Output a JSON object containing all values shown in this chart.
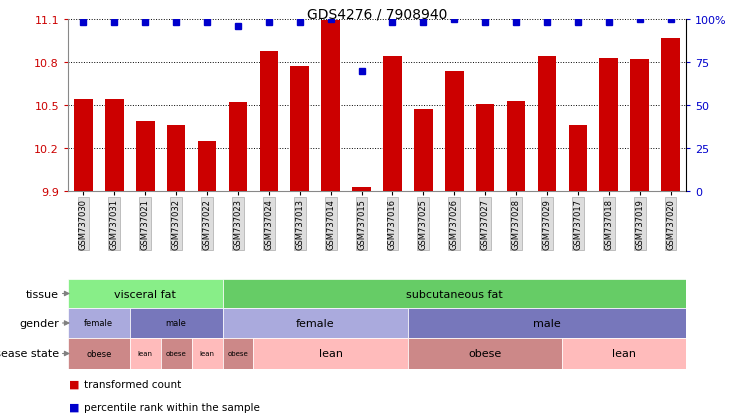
{
  "title": "GDS4276 / 7908940",
  "samples": [
    "GSM737030",
    "GSM737031",
    "GSM737021",
    "GSM737032",
    "GSM737022",
    "GSM737023",
    "GSM737024",
    "GSM737013",
    "GSM737014",
    "GSM737015",
    "GSM737016",
    "GSM737025",
    "GSM737026",
    "GSM737027",
    "GSM737028",
    "GSM737029",
    "GSM737017",
    "GSM737018",
    "GSM737019",
    "GSM737020"
  ],
  "bar_values": [
    10.54,
    10.54,
    10.39,
    10.36,
    10.25,
    10.52,
    10.88,
    10.77,
    11.09,
    9.93,
    10.84,
    10.47,
    10.74,
    10.51,
    10.53,
    10.84,
    10.36,
    10.83,
    10.82,
    10.97
  ],
  "percentile_values": [
    98,
    98,
    98,
    98,
    98,
    96,
    98,
    98,
    100,
    70,
    98,
    98,
    100,
    98,
    98,
    98,
    98,
    98,
    100,
    100
  ],
  "ylim_left": [
    9.9,
    11.1
  ],
  "yticks_left": [
    9.9,
    10.2,
    10.5,
    10.8,
    11.1
  ],
  "ylim_right": [
    0,
    100
  ],
  "yticks_right": [
    0,
    25,
    50,
    75,
    100
  ],
  "bar_color": "#cc0000",
  "dot_color": "#0000cc",
  "tissue_groups": [
    {
      "label": "visceral fat",
      "start": 0,
      "end": 5,
      "color": "#88ee88"
    },
    {
      "label": "subcutaneous fat",
      "start": 5,
      "end": 20,
      "color": "#66cc66"
    }
  ],
  "gender_groups": [
    {
      "label": "female",
      "start": 0,
      "end": 2,
      "color": "#aaaadd"
    },
    {
      "label": "male",
      "start": 2,
      "end": 5,
      "color": "#7777bb"
    },
    {
      "label": "female",
      "start": 5,
      "end": 11,
      "color": "#aaaadd"
    },
    {
      "label": "male",
      "start": 11,
      "end": 20,
      "color": "#7777bb"
    }
  ],
  "disease_groups": [
    {
      "label": "obese",
      "start": 0,
      "end": 2,
      "color": "#cc8888"
    },
    {
      "label": "lean",
      "start": 2,
      "end": 3,
      "color": "#ffbbbb"
    },
    {
      "label": "obese",
      "start": 3,
      "end": 4,
      "color": "#cc8888"
    },
    {
      "label": "lean",
      "start": 4,
      "end": 5,
      "color": "#ffbbbb"
    },
    {
      "label": "obese",
      "start": 5,
      "end": 6,
      "color": "#cc8888"
    },
    {
      "label": "lean",
      "start": 6,
      "end": 11,
      "color": "#ffbbbb"
    },
    {
      "label": "obese",
      "start": 11,
      "end": 16,
      "color": "#cc8888"
    },
    {
      "label": "lean",
      "start": 16,
      "end": 20,
      "color": "#ffbbbb"
    }
  ],
  "legend_items": [
    {
      "label": "transformed count",
      "color": "#cc0000"
    },
    {
      "label": "percentile rank within the sample",
      "color": "#0000cc"
    }
  ]
}
